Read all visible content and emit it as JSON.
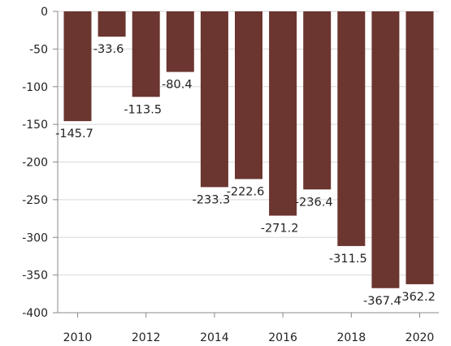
{
  "chart_data": {
    "type": "bar",
    "x": [
      2010,
      2011,
      2012,
      2013,
      2014,
      2015,
      2016,
      2017,
      2018,
      2019,
      2020
    ],
    "x_tick_labels": [
      "2010",
      "2012",
      "2014",
      "2016",
      "2018",
      "2020"
    ],
    "series": [
      {
        "values": [
          -145.7,
          -33.6,
          -113.5,
          -80.4,
          -233.3,
          -222.6,
          -271.2,
          -236.4,
          -311.5,
          -367.4,
          -362.2
        ],
        "data_labels": [
          "-145.7",
          "-33.6",
          "-113.5",
          "-80.4",
          "-233.3",
          "-222.6",
          "-271.2",
          "-236.4",
          "-311.5",
          "-367.4",
          "-362.2"
        ],
        "color": "#6b3530"
      }
    ],
    "y_ticks": [
      0,
      -50,
      -100,
      -150,
      -200,
      -250,
      -300,
      -350,
      -400
    ],
    "ylim": [
      -400,
      0
    ],
    "title": "",
    "xlabel": "",
    "ylabel": "",
    "grid": "horizontal",
    "legend": "none",
    "colors": {
      "bar": "#6b3530",
      "grid": "#d9d9d9",
      "axis": "#888888",
      "text": "#222222"
    }
  }
}
